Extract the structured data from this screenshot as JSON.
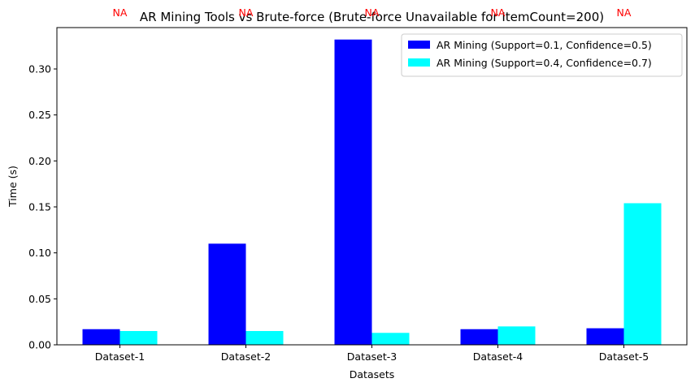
{
  "chart_data": {
    "type": "bar",
    "title": "AR Mining Tools vs Brute-force (Brute-force Unavailable for ItemCount=200)",
    "xlabel": "Datasets",
    "ylabel": "Time (s)",
    "categories": [
      "Dataset-1",
      "Dataset-2",
      "Dataset-3",
      "Dataset-4",
      "Dataset-5"
    ],
    "series": [
      {
        "name": "AR Mining (Support=0.1, Confidence=0.5)",
        "color": "#0000ff",
        "values": [
          0.017,
          0.11,
          0.332,
          0.017,
          0.018
        ]
      },
      {
        "name": "AR Mining (Support=0.4, Confidence=0.7)",
        "color": "#00ffff",
        "values": [
          0.015,
          0.015,
          0.013,
          0.02,
          0.154
        ]
      }
    ],
    "annotations": [
      "NA",
      "NA",
      "NA",
      "NA",
      "NA"
    ],
    "annotation_color": "#ff0000",
    "ylim": [
      0,
      0.345
    ],
    "yticks": [
      "0.00",
      "0.05",
      "0.10",
      "0.15",
      "0.20",
      "0.25",
      "0.30"
    ],
    "ytick_values": [
      0,
      0.05,
      0.1,
      0.15,
      0.2,
      0.25,
      0.3
    ],
    "grid": false,
    "legend_position": "top-right"
  }
}
